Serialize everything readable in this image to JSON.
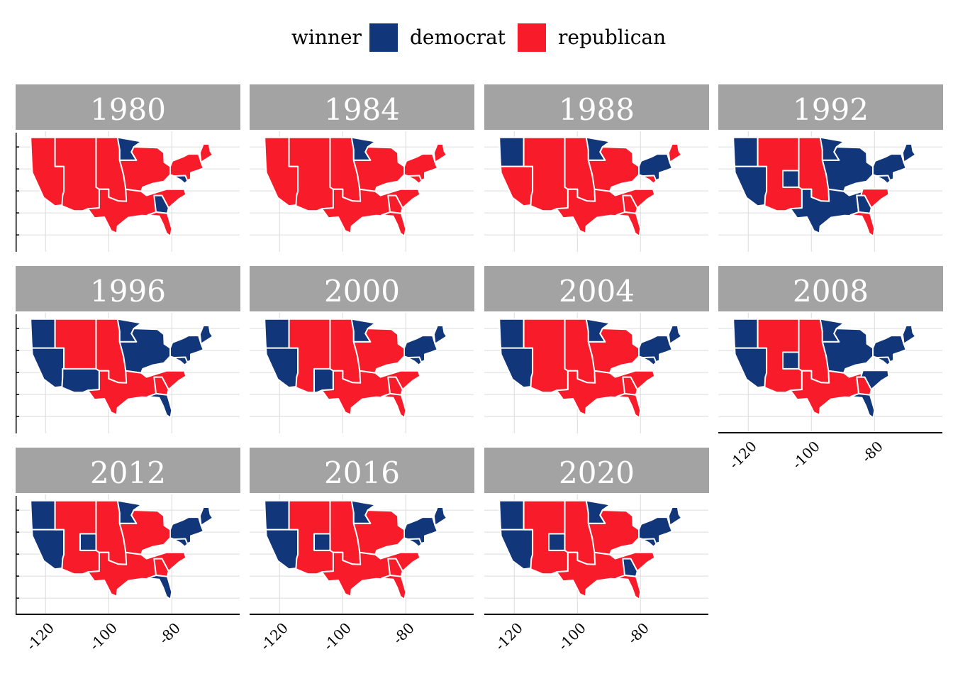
{
  "legend": {
    "title": "winner",
    "items": [
      {
        "label": "democrat",
        "color": "#12367a"
      },
      {
        "label": "republican",
        "color": "#f81c2a"
      }
    ]
  },
  "x_axis": {
    "ticks": [
      "-120",
      "-100",
      "-80"
    ]
  },
  "colors": {
    "democrat": "#12367a",
    "republican": "#f81c2a",
    "strip": "#a3a3a3",
    "grid": "#dcdcdc"
  },
  "panels": [
    {
      "year": "1980",
      "winners": {
        "west": "republican",
        "mountain": "republican",
        "northcentral": "republican",
        "minnesota": "democrat",
        "midwest": "republican",
        "south": "republican",
        "georgia": "democrat",
        "florida": "republican",
        "northeast": "republican",
        "maine": "republican",
        "mdde": "democrat"
      }
    },
    {
      "year": "1984",
      "winners": {
        "west": "republican",
        "mountain": "republican",
        "northcentral": "republican",
        "minnesota": "democrat",
        "midwest": "republican",
        "south": "republican",
        "georgia": "republican",
        "florida": "republican",
        "northeast": "republican",
        "maine": "republican",
        "mdde": "republican"
      }
    },
    {
      "year": "1988",
      "winners": {
        "west": "republican",
        "northwest": "democrat",
        "mountain": "republican",
        "northcentral": "republican",
        "minnesota": "democrat",
        "midwest": "republican",
        "south": "republican",
        "georgia": "republican",
        "florida": "republican",
        "northeast": "democrat",
        "maine": "republican",
        "mdde": "republican"
      }
    },
    {
      "year": "1992",
      "winners": {
        "west": "democrat",
        "northwest": "democrat",
        "mountain": "republican",
        "colorado": "democrat",
        "northcentral": "republican",
        "minnesota": "democrat",
        "midwest": "democrat",
        "south": "democrat",
        "southeast": "republican",
        "georgia": "democrat",
        "florida": "republican",
        "northeast": "democrat",
        "maine": "democrat",
        "mdde": "democrat"
      }
    },
    {
      "year": "1996",
      "winners": {
        "west": "democrat",
        "northwest": "democrat",
        "mountain": "republican",
        "southwest": "democrat",
        "northcentral": "republican",
        "minnesota": "democrat",
        "midwest": "democrat",
        "south": "republican",
        "georgia": "republican",
        "florida": "democrat",
        "northeast": "democrat",
        "maine": "democrat",
        "mdde": "democrat"
      }
    },
    {
      "year": "2000",
      "winners": {
        "west": "democrat",
        "northwest": "democrat",
        "mountain": "republican",
        "newmexico": "democrat",
        "northcentral": "republican",
        "minnesota": "democrat",
        "midwest": "republican",
        "south": "republican",
        "georgia": "republican",
        "florida": "republican",
        "northeast": "democrat",
        "maine": "democrat",
        "mdde": "democrat"
      }
    },
    {
      "year": "2004",
      "winners": {
        "west": "democrat",
        "northwest": "democrat",
        "mountain": "republican",
        "northcentral": "republican",
        "minnesota": "democrat",
        "midwest": "republican",
        "south": "republican",
        "georgia": "republican",
        "florida": "republican",
        "northeast": "democrat",
        "maine": "democrat",
        "mdde": "democrat"
      }
    },
    {
      "year": "2008",
      "winners": {
        "west": "democrat",
        "northwest": "democrat",
        "mountain": "republican",
        "colorado": "democrat",
        "northcentral": "republican",
        "minnesota": "democrat",
        "midwest": "democrat",
        "south": "republican",
        "southeast": "democrat",
        "georgia": "republican",
        "florida": "democrat",
        "northeast": "democrat",
        "maine": "democrat",
        "mdde": "democrat"
      }
    },
    {
      "year": "2012",
      "winners": {
        "west": "democrat",
        "northwest": "democrat",
        "mountain": "republican",
        "colorado": "democrat",
        "northcentral": "republican",
        "minnesota": "democrat",
        "midwest": "republican",
        "south": "republican",
        "georgia": "republican",
        "florida": "democrat",
        "northeast": "democrat",
        "maine": "democrat",
        "mdde": "democrat"
      }
    },
    {
      "year": "2016",
      "winners": {
        "west": "democrat",
        "northwest": "democrat",
        "mountain": "republican",
        "colorado": "democrat",
        "northcentral": "republican",
        "minnesota": "democrat",
        "midwest": "republican",
        "south": "republican",
        "georgia": "republican",
        "florida": "republican",
        "northeast": "democrat",
        "maine": "democrat",
        "mdde": "democrat"
      }
    },
    {
      "year": "2020",
      "winners": {
        "west": "democrat",
        "northwest": "democrat",
        "mountain": "republican",
        "colorado": "democrat",
        "northcentral": "republican",
        "minnesota": "democrat",
        "midwest": "republican",
        "south": "republican",
        "georgia": "democrat",
        "florida": "republican",
        "northeast": "democrat",
        "maine": "democrat",
        "mdde": "democrat"
      }
    }
  ]
}
